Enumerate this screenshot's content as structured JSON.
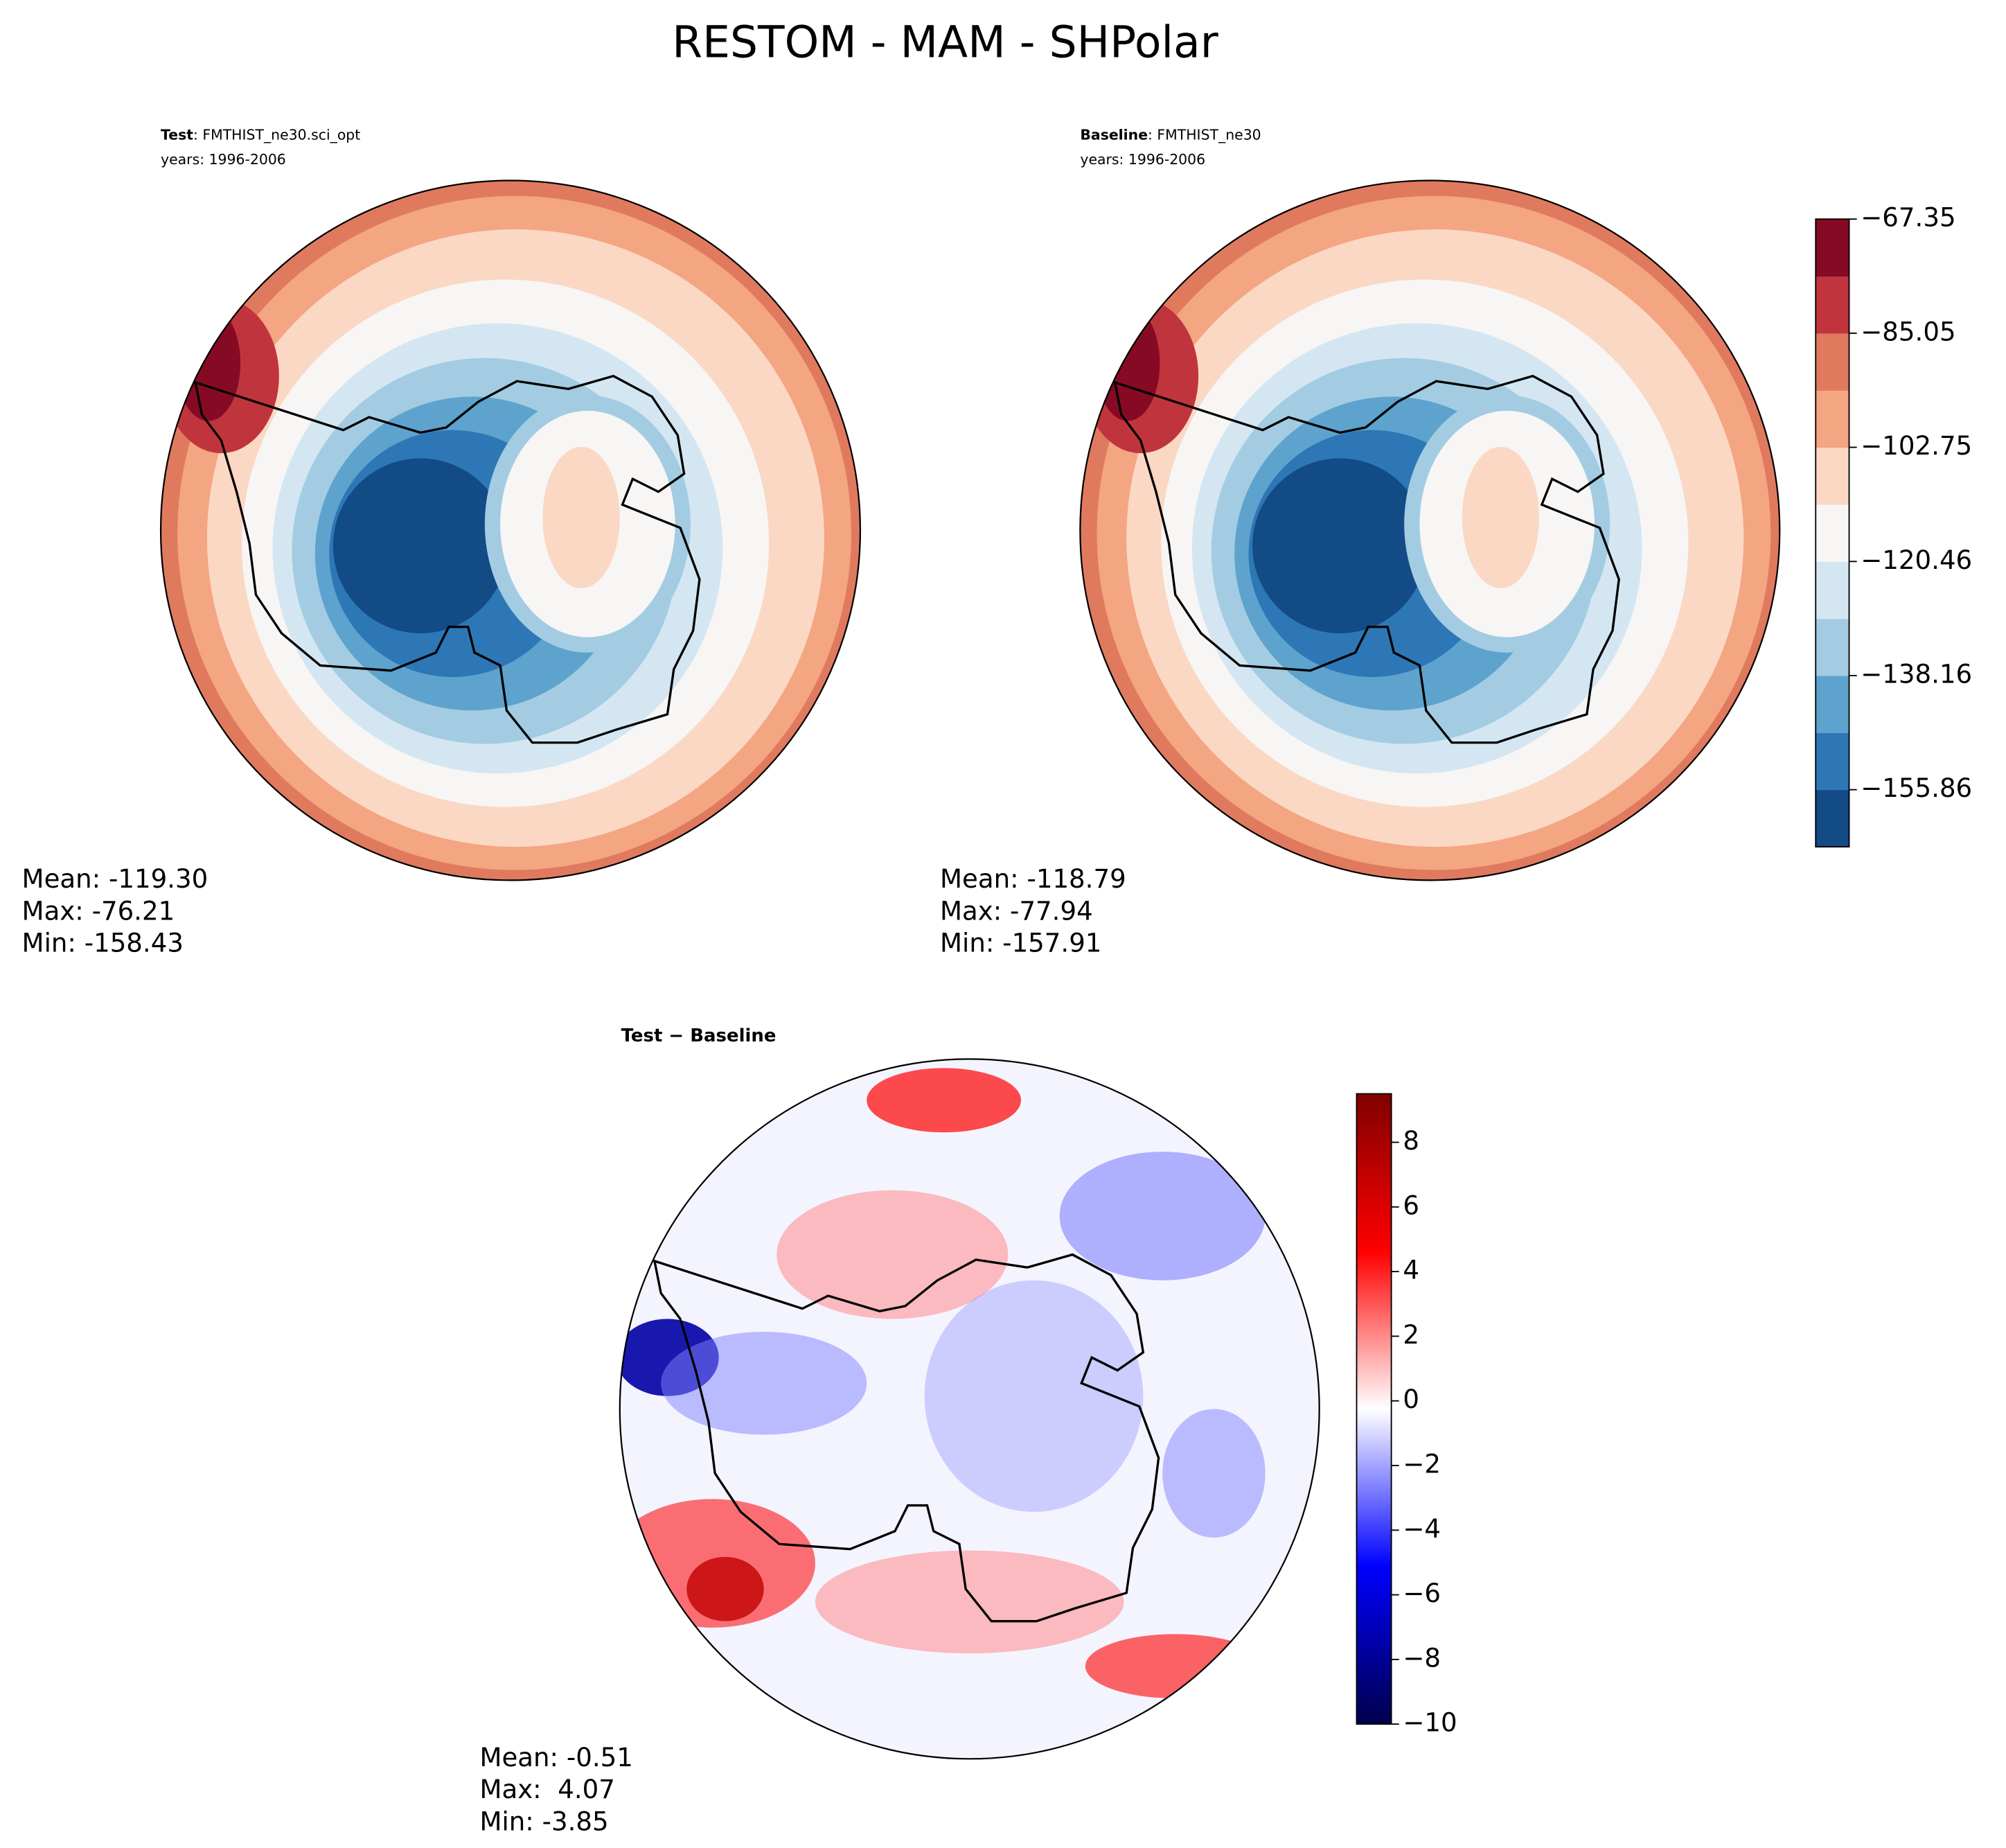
{
  "title": "RESTOM - MAM - SHPolar",
  "panels": [
    {
      "label_bold": "Test",
      "label": ": FMTHIST_ne30.sci_opt",
      "years": "years: 1996-2006",
      "stats": [
        "Mean: -119.30",
        "Max: -76.21",
        "Min: -158.43"
      ]
    },
    {
      "label_bold": "Baseline",
      "label": ": FMTHIST_ne30",
      "years": "years: 1996-2006",
      "stats": [
        "Mean: -118.79",
        "Max: -77.94",
        "Min: -157.91"
      ]
    },
    {
      "label_bold": "Test − Baseline",
      "stats": [
        "Mean: -0.51",
        "Max:  4.07",
        "Min: -3.85"
      ]
    }
  ],
  "colorbars": [
    {
      "lim": [
        -164.72,
        -67.35
      ],
      "ticks": [
        {
          "value": -155.86,
          "label": "−155.86"
        },
        {
          "value": -138.16,
          "label": "−138.16"
        },
        {
          "value": -120.46,
          "label": "−120.46"
        },
        {
          "value": -102.75,
          "label": "−102.75"
        },
        {
          "value": -85.05,
          "label": "−85.05"
        },
        {
          "value": -67.35,
          "label": "−67.35"
        }
      ],
      "colors": [
        "#124b85",
        "#2e77b6",
        "#5da3cd",
        "#a3cce3",
        "#d4e6f1",
        "#f7f6f5",
        "#fbd8c4",
        "#f4a582",
        "#e07a5f",
        "#c0353d",
        "#870a24"
      ]
    },
    {
      "lim": [
        -10,
        9.5
      ],
      "ticks": [
        {
          "value": -10,
          "label": "−10"
        },
        {
          "value": -8,
          "label": "−8"
        },
        {
          "value": -6,
          "label": "−6"
        },
        {
          "value": -4,
          "label": "−4"
        },
        {
          "value": -2,
          "label": "−2"
        },
        0,
        2,
        4,
        6,
        8
      ],
      "colors": [
        "#00004c",
        "#0000a6",
        "#0000ff",
        "#8080ff",
        "#ffffff",
        "#ff8080",
        "#ff0000",
        "#c00000",
        "#800000"
      ]
    }
  ]
}
